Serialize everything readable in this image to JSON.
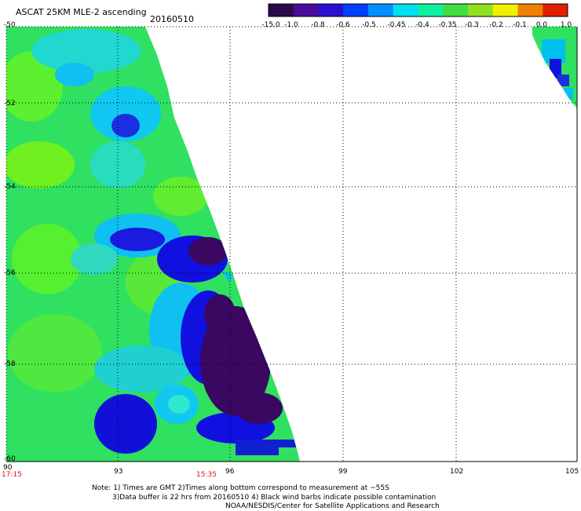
{
  "header": {
    "title": "ASCAT 25KM MLE-2 ascending",
    "date": "20160510"
  },
  "colorbar": {
    "labels": [
      "-15.0",
      "-1.0",
      "-0.8",
      "-0.6",
      "-0.5",
      "-0.45",
      "-0.4",
      "-0.35",
      "-0.3",
      "-0.2",
      "-0.1",
      "0.0",
      "1.0"
    ],
    "colors": [
      "#2a0a4a",
      "#4a0a9a",
      "#2a10d0",
      "#0040ff",
      "#0090ff",
      "#00e0f0",
      "#10f0a0",
      "#40e040",
      "#90e020",
      "#f0f000",
      "#f08000",
      "#e02000"
    ]
  },
  "axes": {
    "lat_ticks": [
      "-50",
      "-52",
      "-54",
      "-56",
      "-58",
      "-60"
    ],
    "lon_ticks": [
      "90",
      "93",
      "96",
      "99",
      "102",
      "105"
    ]
  },
  "times": {
    "start": "17:15",
    "mid": "15:35"
  },
  "notes": {
    "line1": "Note: 1) Times are GMT 2)Times along bottom correspond to measurement at ~55S",
    "line2": "3)Data buffer is 22 hrs from 20160510 4) Black wind barbs indicate possible contamination",
    "line3": "NOAA/NESDIS/Center for Satellite Applications and Research"
  },
  "legend_colors": {
    "background": "#ffffff",
    "grid": "#000000",
    "field_base": "#30e060",
    "field_light": "#60f020",
    "field_cyan": "#00d0f0",
    "field_blue": "#1010e0",
    "field_dark": "#3a0860"
  }
}
